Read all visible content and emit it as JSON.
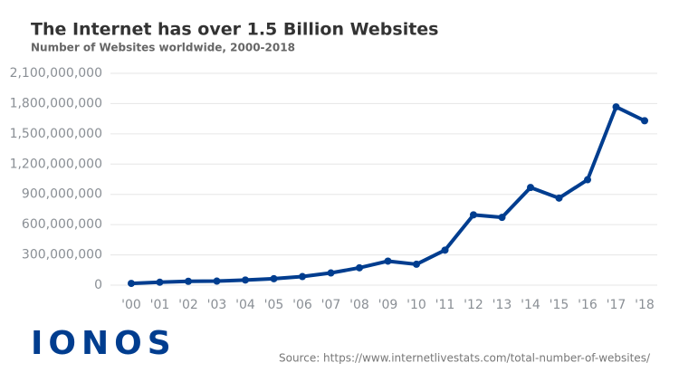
{
  "chart_data": {
    "type": "line",
    "title": "The Internet has over 1.5 Billion Websites",
    "subtitle": "Number of Websites worldwide, 2000-2018",
    "source": "Source: https://www.internetlivestats.com/total-number-of-websites/",
    "brand": "IONOS",
    "categories": [
      "'00",
      "'01",
      "'02",
      "'03",
      "'04",
      "'05",
      "'06",
      "'07",
      "'08",
      "'09",
      "'10",
      "'11",
      "'12",
      "'13",
      "'14",
      "'15",
      "'16",
      "'17",
      "'18"
    ],
    "series": [
      {
        "name": "Websites",
        "color": "#003d8f",
        "values": [
          17000000,
          29000000,
          38000000,
          40000000,
          51000000,
          64000000,
          85000000,
          121000000,
          172000000,
          238000000,
          207000000,
          347000000,
          697000000,
          672000000,
          968000000,
          863000000,
          1045000000,
          1767000000,
          1630000000
        ]
      }
    ],
    "ylim": [
      0,
      2100000000
    ],
    "yticks": [
      0,
      {
        "value": 300000000,
        "label": "300,000,000"
      },
      {
        "value": 600000000,
        "label": "600,000,000"
      },
      {
        "value": 900000000,
        "label": "900,000,000"
      },
      {
        "value": 1200000000,
        "label": "1,200,000,000"
      },
      {
        "value": 1500000000,
        "label": "1,500,000,000"
      },
      {
        "value": 1800000000,
        "label": "1,800,000,000"
      },
      {
        "value": 2100000000,
        "label": "2,100,000,000"
      }
    ],
    "grid": true
  }
}
